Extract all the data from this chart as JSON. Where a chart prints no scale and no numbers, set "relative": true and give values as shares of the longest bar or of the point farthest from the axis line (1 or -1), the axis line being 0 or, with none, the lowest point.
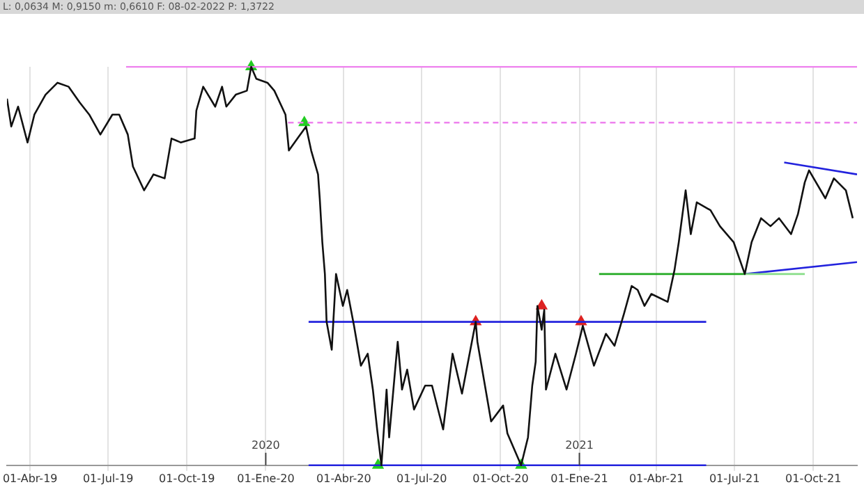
{
  "chart_data": {
    "type": "line",
    "relative": true,
    "annotations": [
      "L: 0,0634 M: 0,9150 m: 0,6610 F: 08-02-2022 P: 1,3722"
    ],
    "x2lim": [
      "2019-03-05",
      "2021-11-21"
    ],
    "x2ticks": [
      {
        "value": "2020-01-01",
        "label": "2020"
      },
      {
        "value": "2021-01-01",
        "label": "2021"
      }
    ],
    "xlim": [
      "2019-03-05",
      "2021-11-21"
    ],
    "xticks": [
      {
        "value": "2019-04-01",
        "label": "01-Abr-19"
      },
      {
        "value": "2019-07-01",
        "label": "01-Jul-19"
      },
      {
        "value": "2019-10-01",
        "label": "01-Oct-19"
      },
      {
        "value": "2020-01-01",
        "label": "01-Ene-20"
      },
      {
        "value": "2020-04-01",
        "label": "01-Abr-20"
      },
      {
        "value": "2020-07-01",
        "label": "01-Jul-20"
      },
      {
        "value": "2020-10-01",
        "label": "01-Oct-20"
      },
      {
        "value": "2021-01-01",
        "label": "01-Ene-21"
      },
      {
        "value": "2021-04-01",
        "label": "01-Abr-21"
      },
      {
        "value": "2021-07-01",
        "label": "01-Jul-21"
      },
      {
        "value": "2021-10-01",
        "label": "01-Oct-21"
      }
    ],
    "grid": "x",
    "series": [
      {
        "color": "#111111",
        "x": [
          "2019-03-05",
          "2019-03-10",
          "2019-03-18",
          "2019-03-29",
          "2019-04-06",
          "2019-04-19",
          "2019-05-03",
          "2019-05-16",
          "2019-05-29",
          "2019-06-09",
          "2019-06-22",
          "2019-07-06",
          "2019-07-14",
          "2019-07-24",
          "2019-07-30",
          "2019-08-12",
          "2019-08-23",
          "2019-09-05",
          "2019-09-13",
          "2019-09-24",
          "2019-10-10",
          "2019-10-12",
          "2019-10-20",
          "2019-11-03",
          "2019-11-11",
          "2019-11-16",
          "2019-11-27",
          "2019-12-10",
          "2019-12-15",
          "2019-12-21",
          "2020-01-03",
          "2020-01-11",
          "2020-01-24",
          "2020-01-28",
          "2020-02-07",
          "2020-02-17",
          "2020-02-23",
          "2020-03-02",
          "2020-03-04",
          "2020-03-07",
          "2020-03-10",
          "2020-03-12",
          "2020-03-18",
          "2020-03-23",
          "2020-03-31",
          "2020-04-05",
          "2020-04-13",
          "2020-04-21",
          "2020-04-29",
          "2020-05-05",
          "2020-05-10",
          "2020-05-15",
          "2020-05-21",
          "2020-05-24",
          "2020-05-31",
          "2020-06-03",
          "2020-06-08",
          "2020-06-14",
          "2020-06-22",
          "2020-07-05",
          "2020-07-13",
          "2020-07-26",
          "2020-08-06",
          "2020-08-17",
          "2020-09-02",
          "2020-09-04",
          "2020-09-20",
          "2020-10-04",
          "2020-10-09",
          "2020-10-25",
          "2020-11-02",
          "2020-11-07",
          "2020-11-11",
          "2020-11-13",
          "2020-11-18",
          "2020-11-21",
          "2020-11-23",
          "2020-12-04",
          "2020-12-17",
          "2020-12-28",
          "2021-01-05",
          "2021-01-18",
          "2021-02-01",
          "2021-02-11",
          "2021-02-22",
          "2021-03-03",
          "2021-03-10",
          "2021-03-18",
          "2021-03-26",
          "2021-04-14",
          "2021-04-22",
          "2021-04-27",
          "2021-05-05",
          "2021-05-11",
          "2021-05-18",
          "2021-06-03",
          "2021-06-14",
          "2021-06-30",
          "2021-07-13",
          "2021-07-21",
          "2021-08-01",
          "2021-08-12",
          "2021-08-22",
          "2021-09-05",
          "2021-09-13",
          "2021-09-21",
          "2021-09-26",
          "2021-10-15",
          "2021-10-25",
          "2021-11-08",
          "2021-11-16"
        ],
        "values": [
          0.92,
          0.85,
          0.9,
          0.81,
          0.88,
          0.93,
          0.96,
          0.95,
          0.91,
          0.88,
          0.83,
          0.88,
          0.88,
          0.83,
          0.75,
          0.69,
          0.73,
          0.72,
          0.82,
          0.81,
          0.82,
          0.89,
          0.95,
          0.9,
          0.95,
          0.9,
          0.93,
          0.94,
          1.0,
          0.97,
          0.96,
          0.94,
          0.88,
          0.79,
          0.82,
          0.85,
          0.79,
          0.73,
          0.67,
          0.56,
          0.48,
          0.36,
          0.29,
          0.48,
          0.4,
          0.44,
          0.35,
          0.25,
          0.28,
          0.19,
          0.09,
          0.0,
          0.19,
          0.07,
          0.24,
          0.31,
          0.19,
          0.24,
          0.14,
          0.2,
          0.2,
          0.09,
          0.28,
          0.18,
          0.36,
          0.31,
          0.11,
          0.15,
          0.08,
          0.0,
          0.07,
          0.2,
          0.26,
          0.4,
          0.34,
          0.39,
          0.19,
          0.28,
          0.19,
          0.28,
          0.35,
          0.25,
          0.33,
          0.3,
          0.38,
          0.45,
          0.44,
          0.4,
          0.43,
          0.41,
          0.49,
          0.56,
          0.69,
          0.58,
          0.66,
          0.64,
          0.6,
          0.56,
          0.48,
          0.56,
          0.62,
          0.6,
          0.62,
          0.58,
          0.63,
          0.71,
          0.74,
          0.67,
          0.72,
          0.69,
          0.62
        ]
      },
      {
        "color": "#ee82ee",
        "x": [
          "2019-07-22",
          "2021-11-21"
        ],
        "values": [
          1.0,
          1.0
        ]
      },
      {
        "color": "#ee82ee",
        "line_style": "dashed",
        "x": [
          "2020-01-27",
          "2021-11-21"
        ],
        "values": [
          0.86,
          0.86
        ]
      },
      {
        "color": "#2222dd",
        "x": [
          "2020-02-20",
          "2021-05-29"
        ],
        "values": [
          0.36,
          0.36
        ]
      },
      {
        "color": "#2222dd",
        "x": [
          "2020-02-20",
          "2021-05-29"
        ],
        "values": [
          0.0,
          0.0
        ]
      },
      {
        "color": "#22aa22",
        "x": [
          "2021-01-24",
          "2021-07-13"
        ],
        "values": [
          0.48,
          0.48
        ]
      },
      {
        "color": "#88dd88",
        "x": [
          "2021-07-13",
          "2021-09-21"
        ],
        "values": [
          0.48,
          0.48
        ]
      },
      {
        "color": "#2222dd",
        "x": [
          "2021-08-28",
          "2021-11-21"
        ],
        "values": [
          0.76,
          0.73
        ]
      },
      {
        "color": "#2222dd",
        "x": [
          "2021-07-13",
          "2021-11-21"
        ],
        "values": [
          0.48,
          0.51
        ]
      },
      {
        "type": "scatter",
        "marker": "triangle",
        "color": "#22cc22",
        "x": [
          "2019-12-15",
          "2020-02-15",
          "2020-05-11",
          "2020-10-25"
        ],
        "values": [
          1.0,
          0.86,
          0.0,
          0.0
        ]
      },
      {
        "type": "scatter",
        "marker": "triangle",
        "color": "#dd2222",
        "x": [
          "2020-09-02",
          "2020-11-18",
          "2021-01-03"
        ],
        "values": [
          0.36,
          0.4,
          0.36
        ]
      }
    ]
  }
}
